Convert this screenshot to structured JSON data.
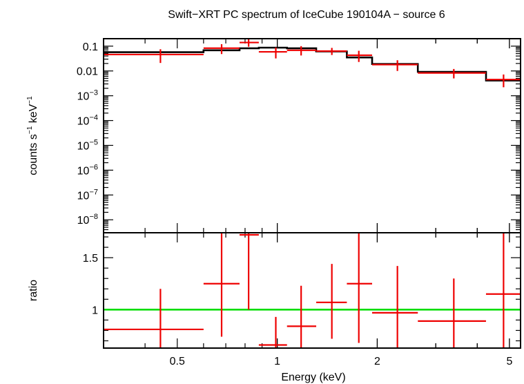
{
  "chart_data": {
    "type": "scatter",
    "title": "Swift−XRT PC spectrum of IceCube 190104A − source 6",
    "xlabel": "Energy (keV)",
    "x_scale": "log",
    "xlim": [
      0.3,
      5.4
    ],
    "x_ticks": [
      {
        "value": 0.5,
        "label": "0.5"
      },
      {
        "value": 1,
        "label": "1"
      },
      {
        "value": 2,
        "label": "2"
      },
      {
        "value": 5,
        "label": "5"
      }
    ],
    "colors": {
      "data": "#ee0000",
      "model": "#000000",
      "unity": "#00dd00"
    },
    "panels": [
      {
        "id": "spectrum",
        "ylabel": {
          "base": "counts s",
          "sup1": "−1",
          "mid": " keV",
          "sup2": "−1"
        },
        "y_scale": "log",
        "ylim": [
          3e-09,
          0.2
        ],
        "y_ticks": [
          {
            "value": 0.1,
            "base": "0.1",
            "exp": ""
          },
          {
            "value": 0.01,
            "base": "0.01",
            "exp": ""
          },
          {
            "value": 0.001,
            "base": "10",
            "exp": "−3"
          },
          {
            "value": 0.0001,
            "base": "10",
            "exp": "−4"
          },
          {
            "value": 1e-05,
            "base": "10",
            "exp": "−5"
          },
          {
            "value": 1e-06,
            "base": "10",
            "exp": "−6"
          },
          {
            "value": 1e-07,
            "base": "10",
            "exp": "−7"
          },
          {
            "value": 1e-08,
            "base": "10",
            "exp": "−8"
          }
        ],
        "data": [
          {
            "x_lo": 0.3,
            "x_hi": 0.6,
            "x": 0.445,
            "y": 0.046,
            "y_lo": 0.021,
            "y_hi": 0.075
          },
          {
            "x_lo": 0.6,
            "x_hi": 0.77,
            "x": 0.68,
            "y": 0.083,
            "y_lo": 0.048,
            "y_hi": 0.12
          },
          {
            "x_lo": 0.77,
            "x_hi": 0.88,
            "x": 0.82,
            "y": 0.14,
            "y_lo": 0.095,
            "y_hi": 0.2
          },
          {
            "x_lo": 0.88,
            "x_hi": 1.07,
            "x": 0.99,
            "y": 0.059,
            "y_lo": 0.032,
            "y_hi": 0.088
          },
          {
            "x_lo": 1.07,
            "x_hi": 1.31,
            "x": 1.18,
            "y": 0.068,
            "y_lo": 0.042,
            "y_hi": 0.1
          },
          {
            "x_lo": 1.31,
            "x_hi": 1.62,
            "x": 1.46,
            "y": 0.063,
            "y_lo": 0.044,
            "y_hi": 0.085
          },
          {
            "x_lo": 1.62,
            "x_hi": 1.93,
            "x": 1.76,
            "y": 0.043,
            "y_lo": 0.023,
            "y_hi": 0.065
          },
          {
            "x_lo": 1.93,
            "x_hi": 2.65,
            "x": 2.3,
            "y": 0.018,
            "y_lo": 0.01,
            "y_hi": 0.027
          },
          {
            "x_lo": 2.65,
            "x_hi": 4.25,
            "x": 3.4,
            "y": 0.0083,
            "y_lo": 0.005,
            "y_hi": 0.012
          },
          {
            "x_lo": 4.25,
            "x_hi": 5.4,
            "x": 4.8,
            "y": 0.0045,
            "y_lo": 0.0022,
            "y_hi": 0.0072
          }
        ],
        "model": [
          {
            "x_lo": 0.3,
            "x_hi": 0.6,
            "y": 0.057
          },
          {
            "x_lo": 0.6,
            "x_hi": 0.77,
            "y": 0.068
          },
          {
            "x_lo": 0.77,
            "x_hi": 0.88,
            "y": 0.082
          },
          {
            "x_lo": 0.88,
            "x_hi": 1.07,
            "y": 0.087
          },
          {
            "x_lo": 1.07,
            "x_hi": 1.31,
            "y": 0.082
          },
          {
            "x_lo": 1.31,
            "x_hi": 1.62,
            "y": 0.061
          },
          {
            "x_lo": 1.62,
            "x_hi": 1.93,
            "y": 0.035
          },
          {
            "x_lo": 1.93,
            "x_hi": 2.65,
            "y": 0.019
          },
          {
            "x_lo": 2.65,
            "x_hi": 4.25,
            "y": 0.0092
          },
          {
            "x_lo": 4.25,
            "x_hi": 5.4,
            "y": 0.0041
          }
        ]
      },
      {
        "id": "ratio",
        "ylabel": "ratio",
        "y_scale": "linear",
        "ylim": [
          0.63,
          1.74
        ],
        "y_ticks": [
          {
            "value": 1,
            "label": "1"
          },
          {
            "value": 1.5,
            "label": "1.5"
          }
        ],
        "reference_line": 1,
        "data": [
          {
            "x_lo": 0.3,
            "x_hi": 0.6,
            "x": 0.445,
            "y": 0.81,
            "y_lo": 0.63,
            "y_hi": 1.2
          },
          {
            "x_lo": 0.6,
            "x_hi": 0.77,
            "x": 0.68,
            "y": 1.25,
            "y_lo": 0.74,
            "y_hi": 1.74
          },
          {
            "x_lo": 0.77,
            "x_hi": 0.88,
            "x": 0.82,
            "y": 1.72,
            "y_lo": 1.0,
            "y_hi": 1.74
          },
          {
            "x_lo": 0.88,
            "x_hi": 1.07,
            "x": 0.99,
            "y": 0.66,
            "y_lo": 0.63,
            "y_hi": 0.93
          },
          {
            "x_lo": 1.07,
            "x_hi": 1.31,
            "x": 1.18,
            "y": 0.84,
            "y_lo": 0.63,
            "y_hi": 1.23
          },
          {
            "x_lo": 1.31,
            "x_hi": 1.62,
            "x": 1.46,
            "y": 1.07,
            "y_lo": 0.72,
            "y_hi": 1.44
          },
          {
            "x_lo": 1.62,
            "x_hi": 1.93,
            "x": 1.76,
            "y": 1.25,
            "y_lo": 0.68,
            "y_hi": 1.74
          },
          {
            "x_lo": 1.93,
            "x_hi": 2.65,
            "x": 2.3,
            "y": 0.97,
            "y_lo": 0.63,
            "y_hi": 1.42
          },
          {
            "x_lo": 2.65,
            "x_hi": 4.25,
            "x": 3.4,
            "y": 0.89,
            "y_lo": 0.63,
            "y_hi": 1.3
          },
          {
            "x_lo": 4.25,
            "x_hi": 5.4,
            "x": 4.8,
            "y": 1.15,
            "y_lo": 0.63,
            "y_hi": 1.74
          }
        ]
      }
    ]
  }
}
